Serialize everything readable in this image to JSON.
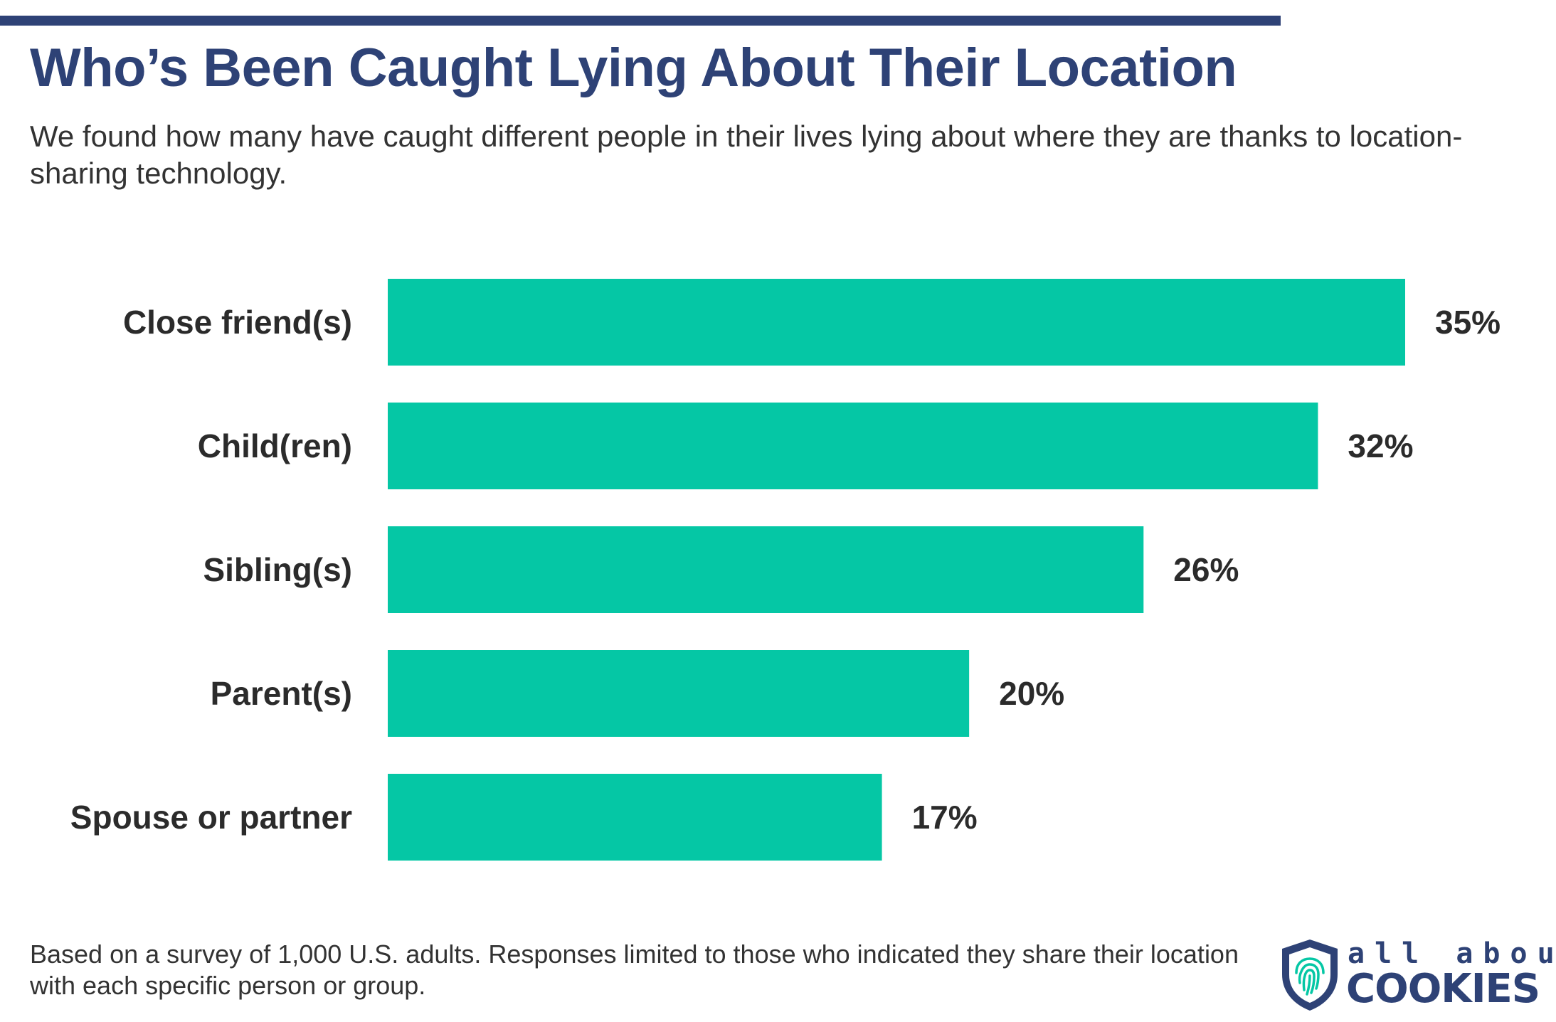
{
  "header": {
    "title": "Who’s Been Caught Lying About Their Location",
    "subtitle": "We found how many have caught different people in their lives lying about where they are thanks to location-sharing technology."
  },
  "chart_data": {
    "type": "bar",
    "orientation": "horizontal",
    "title": "Who’s Been Caught Lying About Their Location",
    "categories": [
      "Close friend(s)",
      "Child(ren)",
      "Sibling(s)",
      "Parent(s)",
      "Spouse or partner"
    ],
    "values": [
      35,
      32,
      26,
      20,
      17
    ],
    "value_labels": [
      "35%",
      "32%",
      "26%",
      "20%",
      "17%"
    ],
    "unit": "%",
    "xlabel": "",
    "ylabel": "",
    "xlim": [
      0,
      35
    ],
    "grid": false,
    "bar_color": "#05c7a5"
  },
  "footer": {
    "note": "Based on a survey of 1,000 U.S. adults. Responses limited to those who indicated they share their location with each specific person or group."
  },
  "brand": {
    "logo_icon": "shield-fingerprint-icon",
    "top_text": "all about",
    "bottom_text": "COOKIES",
    "primary_color": "#2e4276",
    "accent_color": "#05c7a5"
  }
}
